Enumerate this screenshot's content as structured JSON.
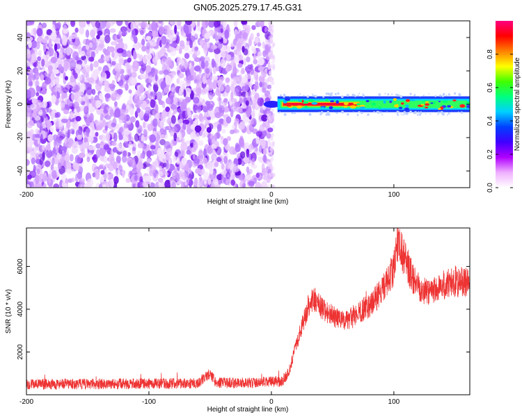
{
  "title": "GN05.2025.279.17.45.G31",
  "chart_data": [
    {
      "type": "heatmap",
      "name": "spectrogram",
      "xlabel": "Height of straight line (km)",
      "ylabel": "Frequency (Hz)",
      "xlim": [
        -200,
        162
      ],
      "ylim": [
        -50,
        50
      ],
      "xticks": [
        -200,
        -100,
        0,
        100
      ],
      "yticks": [
        -40,
        -20,
        0,
        20,
        40
      ],
      "x_tick_labels": [
        "-200",
        "-100",
        "0",
        "100"
      ],
      "y_tick_labels": [
        "-40",
        "-20",
        "0",
        "20",
        "40"
      ],
      "noise_region_x": [
        -200,
        0
      ],
      "signal_band": {
        "x_start": 5,
        "x_end": 162,
        "freq_center": 0,
        "freq_halfwidth": 2.5,
        "core_amplitude": 0.95
      },
      "colorbar": {
        "label": "Normalized spectral amplitude",
        "range": [
          0,
          1
        ],
        "ticks": [
          0.0,
          0.2,
          0.4,
          0.6,
          0.8
        ],
        "tick_labels": [
          "0.0",
          "0.2",
          "0.4",
          "0.6",
          "0.8"
        ],
        "colormap": "rainbow",
        "colors": [
          "#ffffff",
          "#f0b0ff",
          "#b000ff",
          "#4000ff",
          "#0040ff",
          "#00d0ff",
          "#00ff80",
          "#40ff00",
          "#ffff00",
          "#ff8000",
          "#ff0000",
          "#ff0080"
        ]
      }
    },
    {
      "type": "line",
      "name": "snr",
      "xlabel": "Height of straight line (km)",
      "ylabel": "SNR (10 * v/v)",
      "xlim": [
        -200,
        162
      ],
      "ylim": [
        0,
        7800
      ],
      "xticks": [
        -200,
        -100,
        0,
        100
      ],
      "yticks": [
        2000,
        4000,
        6000
      ],
      "x_tick_labels": [
        "-200",
        "-100",
        "0",
        "100"
      ],
      "y_tick_labels": [
        "2000",
        "4000",
        "6000"
      ],
      "color": "#ee3333",
      "envelope": {
        "x": [
          -200,
          -150,
          -100,
          -60,
          -50,
          -45,
          -30,
          -10,
          0,
          10,
          15,
          20,
          25,
          30,
          35,
          40,
          50,
          60,
          70,
          80,
          90,
          100,
          103,
          108,
          115,
          125,
          140,
          150,
          162
        ],
        "y": [
          500,
          500,
          520,
          540,
          1000,
          560,
          560,
          560,
          600,
          650,
          1200,
          2300,
          3200,
          4200,
          4500,
          4100,
          3700,
          3400,
          3800,
          4200,
          4800,
          5900,
          7000,
          6500,
          5500,
          4800,
          5100,
          5300,
          5200
        ]
      }
    }
  ]
}
